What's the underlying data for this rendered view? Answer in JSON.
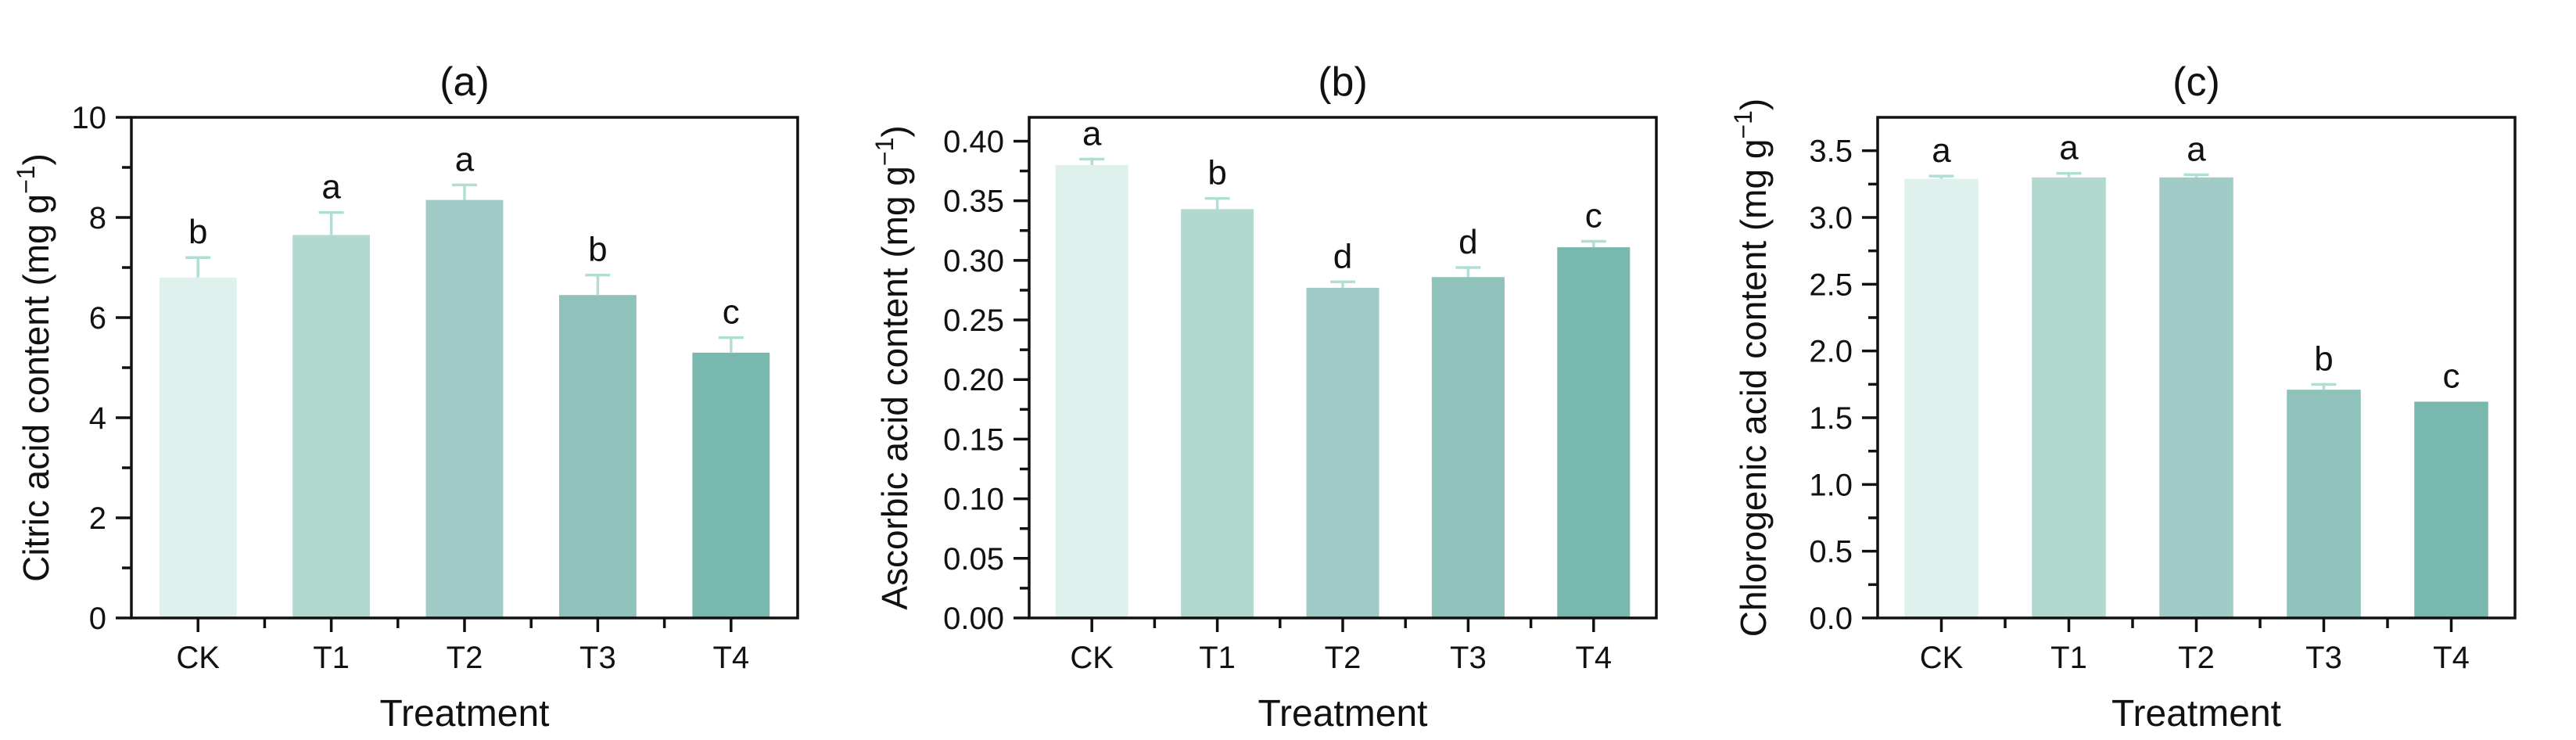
{
  "figure": {
    "background": "#ffffff",
    "axis_color": "#111111",
    "text_color": "#111111",
    "error_bar_color": "#b0ded5",
    "bar_colors": [
      "#dff1ed",
      "#b3d8d0",
      "#a0cbc6",
      "#8ec2bb",
      "#79b8ae"
    ]
  },
  "chart_data": [
    {
      "type": "bar",
      "title": "(a)",
      "ylabel": "Citric acid content (mg g⁻¹)",
      "xlabel": "Treatment",
      "categories": [
        "CK",
        "T1",
        "T2",
        "T3",
        "T4"
      ],
      "values": [
        6.8,
        7.65,
        8.35,
        6.45,
        5.3
      ],
      "errors": [
        0.4,
        0.45,
        0.3,
        0.4,
        0.3
      ],
      "sig_letters": [
        "b",
        "a",
        "a",
        "b",
        "c"
      ],
      "ylim": [
        0,
        10
      ],
      "ytick_step": 2,
      "ytick_max": 10,
      "yminor_step": 1,
      "ytick_decimals": 0,
      "axis_max": 10,
      "grid": "off",
      "legend": "none"
    },
    {
      "type": "bar",
      "title": "(b)",
      "ylabel": "Ascorbic acid content (mg g⁻¹)",
      "xlabel": "Treatment",
      "categories": [
        "CK",
        "T1",
        "T2",
        "T3",
        "T4"
      ],
      "values": [
        0.38,
        0.343,
        0.277,
        0.286,
        0.311
      ],
      "errors": [
        0.005,
        0.009,
        0.005,
        0.008,
        0.005
      ],
      "sig_letters": [
        "a",
        "b",
        "d",
        "d",
        "c"
      ],
      "ylim": [
        0,
        0.42
      ],
      "ytick_step": 0.05,
      "ytick_max": 0.4,
      "yminor_step": 0.025,
      "ytick_decimals": 2,
      "axis_max": 0.42,
      "grid": "off",
      "legend": "none"
    },
    {
      "type": "bar",
      "title": "(c)",
      "ylabel": "Chlorogenic acid content (mg g⁻¹)",
      "xlabel": "Treatment",
      "categories": [
        "CK",
        "T1",
        "T2",
        "T3",
        "T4"
      ],
      "values": [
        3.29,
        3.3,
        3.3,
        1.71,
        1.62
      ],
      "errors": [
        0.02,
        0.03,
        0.02,
        0.04,
        0
      ],
      "sig_letters": [
        "a",
        "a",
        "a",
        "b",
        "c"
      ],
      "ylim": [
        0,
        3.75
      ],
      "ytick_step": 0.5,
      "ytick_max": 3.5,
      "yminor_step": 0.25,
      "ytick_decimals": 1,
      "axis_max": 3.75,
      "grid": "off",
      "legend": "none"
    }
  ]
}
